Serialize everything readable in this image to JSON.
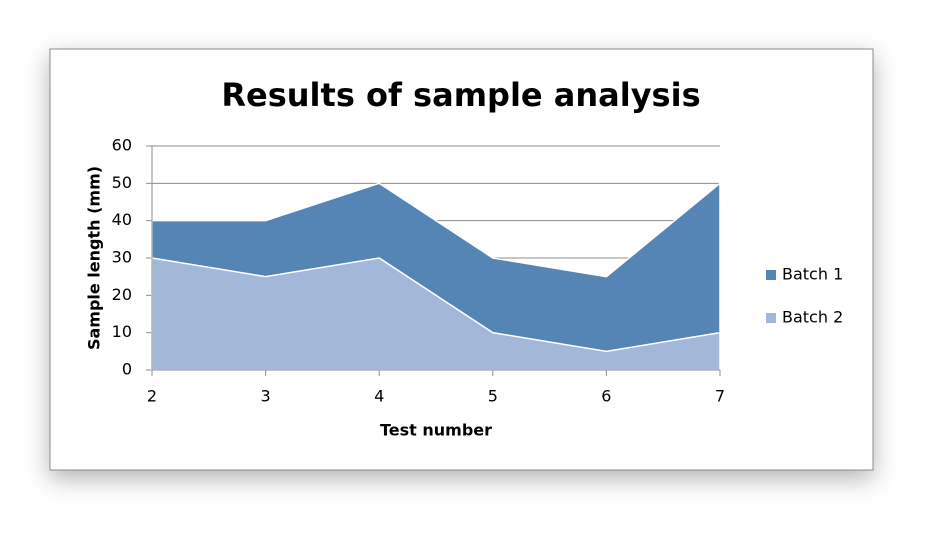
{
  "chart_data": {
    "type": "area",
    "title": "Results of sample analysis",
    "x_label": "Test number",
    "y_label": "Sample length (mm)",
    "x": [
      2,
      3,
      4,
      5,
      6,
      7
    ],
    "series": [
      {
        "name": "Batch 1",
        "color": "#5585b5",
        "values": [
          40,
          40,
          50,
          30,
          25,
          50
        ]
      },
      {
        "name": "Batch 2",
        "color": "#a3b7d9",
        "values": [
          30,
          25,
          30,
          10,
          5,
          10
        ]
      }
    ],
    "xlim": [
      2,
      7
    ],
    "xticks": [
      2,
      3,
      4,
      5,
      6,
      7
    ],
    "ylim": [
      0,
      60
    ],
    "yticks": [
      0,
      10,
      20,
      30,
      40,
      50,
      60
    ],
    "grid": true,
    "legend": "right"
  }
}
